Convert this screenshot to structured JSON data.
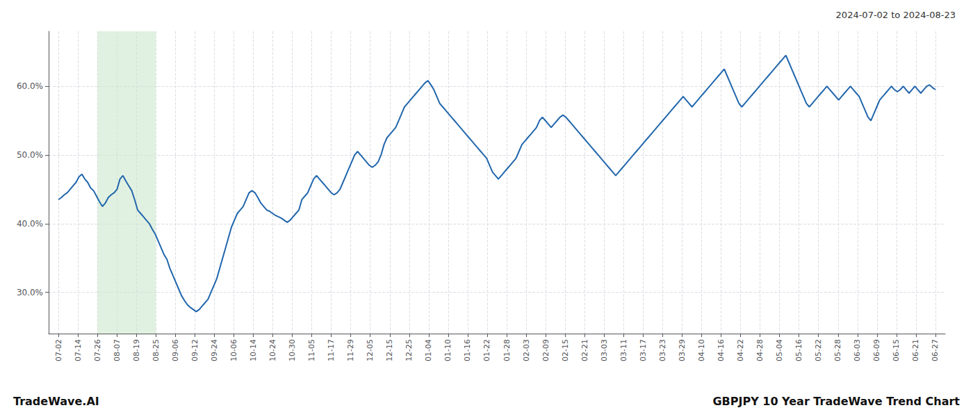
{
  "chart_data": {
    "type": "line",
    "annotations": [
      "2024-07-02 to 2024-08-23",
      "TradeWave.AI",
      "GBPJPY 10 Year TradeWave Trend Chart"
    ],
    "color": "#2166ac",
    "grid": true,
    "shaded": {
      "x": [
        2,
        5
      ],
      "color": "#c8e6c9"
    },
    "xlim": [
      -0.5,
      45.5
    ],
    "xticks": [
      {
        "value": 0,
        "label": "07-02"
      },
      {
        "value": 1,
        "label": "07-14"
      },
      {
        "value": 2,
        "label": "07-26"
      },
      {
        "value": 3,
        "label": "08-07"
      },
      {
        "value": 4,
        "label": "08-19"
      },
      {
        "value": 5,
        "label": "08-25"
      },
      {
        "value": 6,
        "label": "09-06"
      },
      {
        "value": 7,
        "label": "09-12"
      },
      {
        "value": 8,
        "label": "09-24"
      },
      {
        "value": 9,
        "label": "10-06"
      },
      {
        "value": 10,
        "label": "10-14"
      },
      {
        "value": 11,
        "label": "10-24"
      },
      {
        "value": 12,
        "label": "10-30"
      },
      {
        "value": 13,
        "label": "11-05"
      },
      {
        "value": 14,
        "label": "11-17"
      },
      {
        "value": 15,
        "label": "11-29"
      },
      {
        "value": 16,
        "label": "12-05"
      },
      {
        "value": 17,
        "label": "12-15"
      },
      {
        "value": 18,
        "label": "12-25"
      },
      {
        "value": 19,
        "label": "01-04"
      },
      {
        "value": 20,
        "label": "01-10"
      },
      {
        "value": 21,
        "label": "01-16"
      },
      {
        "value": 22,
        "label": "01-22"
      },
      {
        "value": 23,
        "label": "01-28"
      },
      {
        "value": 24,
        "label": "02-03"
      },
      {
        "value": 25,
        "label": "02-09"
      },
      {
        "value": 26,
        "label": "02-15"
      },
      {
        "value": 27,
        "label": "02-21"
      },
      {
        "value": 28,
        "label": "03-03"
      },
      {
        "value": 29,
        "label": "03-11"
      },
      {
        "value": 30,
        "label": "03-17"
      },
      {
        "value": 31,
        "label": "03-23"
      },
      {
        "value": 32,
        "label": "03-29"
      },
      {
        "value": 33,
        "label": "04-10"
      },
      {
        "value": 34,
        "label": "04-16"
      },
      {
        "value": 35,
        "label": "04-22"
      },
      {
        "value": 36,
        "label": "04-28"
      },
      {
        "value": 37,
        "label": "05-04"
      },
      {
        "value": 38,
        "label": "05-16"
      },
      {
        "value": 39,
        "label": "05-22"
      },
      {
        "value": 40,
        "label": "05-28"
      },
      {
        "value": 41,
        "label": "06-03"
      },
      {
        "value": 42,
        "label": "06-09"
      },
      {
        "value": 43,
        "label": "06-15"
      },
      {
        "value": 44,
        "label": "06-21"
      },
      {
        "value": 45,
        "label": "06-27"
      }
    ],
    "ylim": [
      24.0,
      68.0
    ],
    "yticks": [
      {
        "value": 30.0,
        "label": "30.0%"
      },
      {
        "value": 40.0,
        "label": "40.0%"
      },
      {
        "value": 50.0,
        "label": "50.0%"
      },
      {
        "value": 60.0,
        "label": "60.0%"
      }
    ],
    "x": [
      0,
      0.1505,
      0.301,
      0.4515,
      0.602,
      0.7525,
      0.903,
      1.0535,
      1.204,
      1.3545,
      1.505,
      1.6555,
      1.806,
      1.9565,
      2.107,
      2.2575,
      2.408,
      2.5585,
      2.709,
      2.8595,
      3.01,
      3.1605,
      3.311,
      3.4615,
      3.612,
      3.7625,
      3.913,
      4.0635,
      4.214,
      4.3645,
      4.5151,
      4.6656,
      4.8161,
      4.9666,
      5.1171,
      5.2676,
      5.4181,
      5.5686,
      5.7191,
      5.8696,
      6.0201,
      6.1706,
      6.3211,
      6.4716,
      6.6221,
      6.7726,
      6.9231,
      7.0736,
      7.2241,
      7.3746,
      7.5251,
      7.6756,
      7.8261,
      7.9766,
      8.1271,
      8.2776,
      8.4281,
      8.5786,
      8.7291,
      8.8796,
      9.0301,
      9.1806,
      9.3311,
      9.4816,
      9.6321,
      9.7826,
      9.9331,
      10.0836,
      10.2341,
      10.3846,
      10.5351,
      10.6856,
      10.8361,
      10.9866,
      11.1371,
      11.2876,
      11.4381,
      11.5886,
      11.7391,
      11.8896,
      12.0401,
      12.1906,
      12.3411,
      12.4916,
      12.6421,
      12.7926,
      12.9431,
      13.0936,
      13.2441,
      13.3946,
      13.5452,
      13.6957,
      13.8462,
      13.9967,
      14.1472,
      14.2977,
      14.4482,
      14.5987,
      14.7492,
      14.8997,
      15.0502,
      15.2007,
      15.3512,
      15.5017,
      15.6522,
      15.8027,
      15.9532,
      16.1037,
      16.2542,
      16.4047,
      16.5552,
      16.7057,
      16.8562,
      17.0067,
      17.1572,
      17.3077,
      17.4582,
      17.6087,
      17.7592,
      17.9097,
      18.0602,
      18.2107,
      18.3612,
      18.5117,
      18.6622,
      18.8127,
      18.9632,
      19.1137,
      19.2642,
      19.4147,
      19.5652,
      19.7157,
      19.8662,
      20.0167,
      20.1672,
      20.3177,
      20.4682,
      20.6187,
      20.7692,
      20.9197,
      21.0702,
      21.2207,
      21.3712,
      21.5217,
      21.6722,
      21.8227,
      21.9732,
      22.1237,
      22.2742,
      22.4247,
      22.5753,
      22.7258,
      22.8763,
      23.0268,
      23.1773,
      23.3278,
      23.4783,
      23.6288,
      23.7793,
      23.9298,
      24.0803,
      24.2308,
      24.3813,
      24.5318,
      24.6823,
      24.8328,
      24.9833,
      25.1338,
      25.2843,
      25.4348,
      25.5853,
      25.7358,
      25.8863,
      26.0368,
      26.1873,
      26.3378,
      26.4883,
      26.6388,
      26.7893,
      26.9398,
      27.0903,
      27.2408,
      27.3913,
      27.5418,
      27.6923,
      27.8428,
      27.9933,
      28.1438,
      28.2943,
      28.4448,
      28.5953,
      28.7458,
      28.8963,
      29.0468,
      29.1973,
      29.3478,
      29.4983,
      29.6488,
      29.7993,
      29.9498,
      30.1003,
      30.2508,
      30.4013,
      30.5518,
      30.7023,
      30.8528,
      31.0033,
      31.1538,
      31.3043,
      31.4548,
      31.6054,
      31.7559,
      31.9064,
      32.0569,
      32.2074,
      32.3579,
      32.5084,
      32.6589,
      32.8094,
      32.9599,
      33.1104,
      33.2609,
      33.4114,
      33.5619,
      33.7124,
      33.8629,
      34.0134,
      34.1639,
      34.3144,
      34.4649,
      34.6154,
      34.7659,
      34.9164,
      35.0669,
      35.2174,
      35.3679,
      35.5184,
      35.6689,
      35.8194,
      35.9699,
      36.1204,
      36.2709,
      36.4214,
      36.5719,
      36.7224,
      36.8729,
      37.0234,
      37.1739,
      37.3244,
      37.4749,
      37.6254,
      37.7759,
      37.9264,
      38.0769,
      38.2274,
      38.3779,
      38.5284,
      38.6789,
      38.8294,
      38.9799,
      39.1304,
      39.2809,
      39.4314,
      39.5819,
      39.7324,
      39.8829,
      40.0334,
      40.1839,
      40.3344,
      40.4849,
      40.6355,
      40.786,
      40.9365,
      41.087,
      41.2375,
      41.388,
      41.5385,
      41.689,
      41.8395,
      41.99,
      42.1405,
      42.291,
      42.4415,
      42.592,
      42.7425,
      42.893,
      43.0435,
      43.194,
      43.3445,
      43.495,
      43.6455,
      43.796,
      43.9465,
      44.097,
      44.2475,
      44.398,
      44.5485,
      44.699,
      44.8495,
      45
    ],
    "values": [
      43.5,
      43.8,
      44.2,
      44.5,
      45.0,
      45.5,
      46.0,
      46.8,
      47.2,
      46.5,
      46.0,
      45.2,
      44.8,
      44.0,
      43.2,
      42.5,
      43.0,
      43.8,
      44.2,
      44.5,
      45.0,
      46.5,
      47.0,
      46.2,
      45.5,
      44.8,
      43.5,
      42.0,
      41.5,
      41.0,
      40.5,
      40.0,
      39.2,
      38.5,
      37.5,
      36.5,
      35.5,
      34.8,
      33.5,
      32.5,
      31.5,
      30.5,
      29.5,
      28.8,
      28.2,
      27.8,
      27.5,
      27.2,
      27.5,
      28.0,
      28.5,
      29.0,
      30.0,
      31.0,
      32.0,
      33.5,
      35.0,
      36.5,
      38.0,
      39.5,
      40.5,
      41.5,
      42.0,
      42.5,
      43.5,
      44.5,
      44.8,
      44.5,
      43.8,
      43.0,
      42.5,
      42.0,
      41.8,
      41.5,
      41.2,
      41.0,
      40.8,
      40.5,
      40.2,
      40.5,
      41.0,
      41.5,
      42.0,
      43.5,
      44.0,
      44.5,
      45.5,
      46.5,
      47.0,
      46.5,
      46.0,
      45.5,
      45.0,
      44.5,
      44.2,
      44.5,
      45.0,
      46.0,
      47.0,
      48.0,
      49.0,
      50.0,
      50.5,
      50.0,
      49.5,
      49.0,
      48.5,
      48.2,
      48.5,
      49.0,
      50.0,
      51.5,
      52.5,
      53.0,
      53.5,
      54.0,
      55.0,
      56.0,
      57.0,
      57.5,
      58.0,
      58.5,
      59.0,
      59.5,
      60.0,
      60.5,
      60.8,
      60.2,
      59.5,
      58.5,
      57.5,
      57.0,
      56.5,
      56.0,
      55.5,
      55.0,
      54.5,
      54.0,
      53.5,
      53.0,
      52.5,
      52.0,
      51.5,
      51.0,
      50.5,
      50.0,
      49.5,
      48.5,
      47.5,
      47.0,
      46.5,
      47.0,
      47.5,
      48.0,
      48.5,
      49.0,
      49.5,
      50.5,
      51.5,
      52.0,
      52.5,
      53.0,
      53.5,
      54.0,
      55.0,
      55.5,
      55.0,
      54.5,
      54.0,
      54.5,
      55.0,
      55.5,
      55.8,
      55.5,
      55.0,
      54.5,
      54.0,
      53.5,
      53.0,
      52.5,
      52.0,
      51.5,
      51.0,
      50.5,
      50.0,
      49.5,
      49.0,
      48.5,
      48.0,
      47.5,
      47.0,
      47.5,
      48.0,
      48.5,
      49.0,
      49.5,
      50.0,
      50.5,
      51.0,
      51.5,
      52.0,
      52.5,
      53.0,
      53.5,
      54.0,
      54.5,
      55.0,
      55.5,
      56.0,
      56.5,
      57.0,
      57.5,
      58.0,
      58.5,
      58.0,
      57.5,
      57.0,
      57.5,
      58.0,
      58.5,
      59.0,
      59.5,
      60.0,
      60.5,
      61.0,
      61.5,
      62.0,
      62.5,
      61.5,
      60.5,
      59.5,
      58.5,
      57.5,
      57.0,
      57.5,
      58.0,
      58.5,
      59.0,
      59.5,
      60.0,
      60.5,
      61.0,
      61.5,
      62.0,
      62.5,
      63.0,
      63.5,
      64.0,
      64.5,
      63.5,
      62.5,
      61.5,
      60.5,
      59.5,
      58.5,
      57.5,
      57.0,
      57.5,
      58.0,
      58.5,
      59.0,
      59.5,
      60.0,
      59.5,
      59.0,
      58.5,
      58.0,
      58.5,
      59.0,
      59.5,
      60.0,
      59.5,
      59.0,
      58.5,
      57.5,
      56.5,
      55.5,
      55.0,
      56.0,
      57.0,
      58.0,
      58.5,
      59.0,
      59.5,
      60.0,
      59.5,
      59.2,
      59.5,
      60.0,
      59.5,
      59.0,
      59.5,
      60.0,
      59.5,
      59.0,
      59.5,
      60.0,
      60.2,
      59.8,
      59.5
    ]
  }
}
